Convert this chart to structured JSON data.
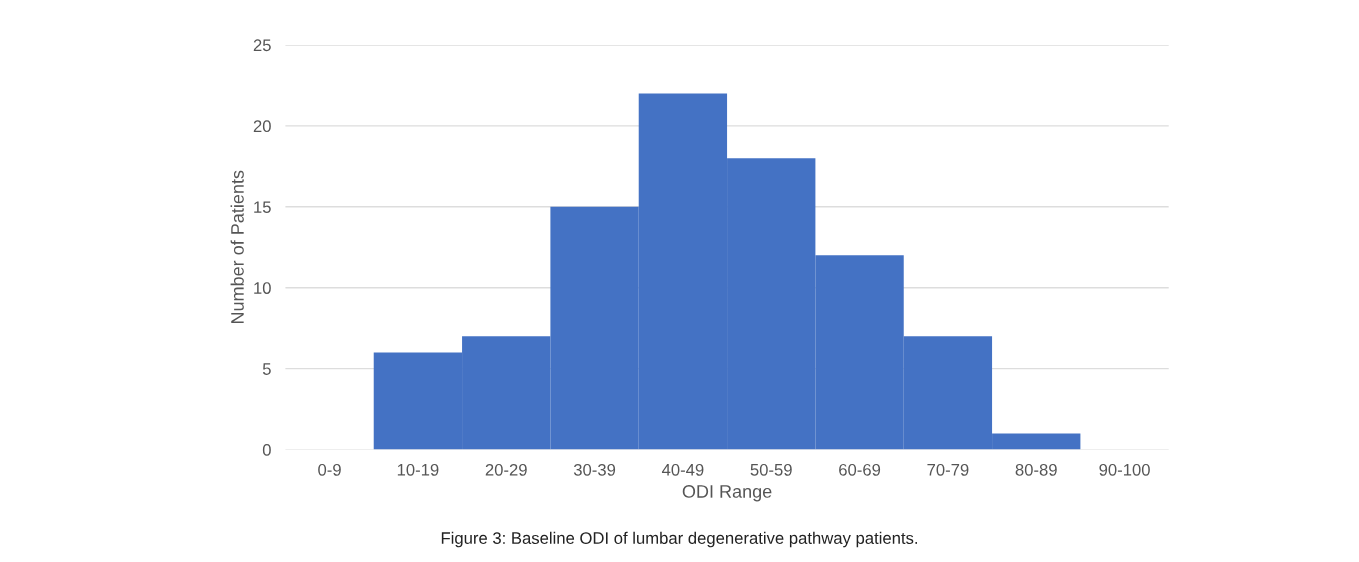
{
  "chart_data": {
    "type": "bar",
    "xlabel": "ODI Range",
    "ylabel": "Number of Patients",
    "categories": [
      "0-9",
      "10-19",
      "20-29",
      "30-39",
      "40-49",
      "50-59",
      "60-69",
      "70-79",
      "80-89",
      "90-100"
    ],
    "values": [
      0,
      6,
      7,
      15,
      22,
      18,
      12,
      7,
      1,
      0
    ],
    "color": "#4472c4",
    "ylim": [
      0,
      25
    ],
    "yticks": [
      0,
      5,
      10,
      15,
      20,
      25
    ],
    "grid": "y",
    "legend": false,
    "annotations": [
      "Figure 3: Baseline ODI of lumbar degenerative pathway patients."
    ]
  }
}
